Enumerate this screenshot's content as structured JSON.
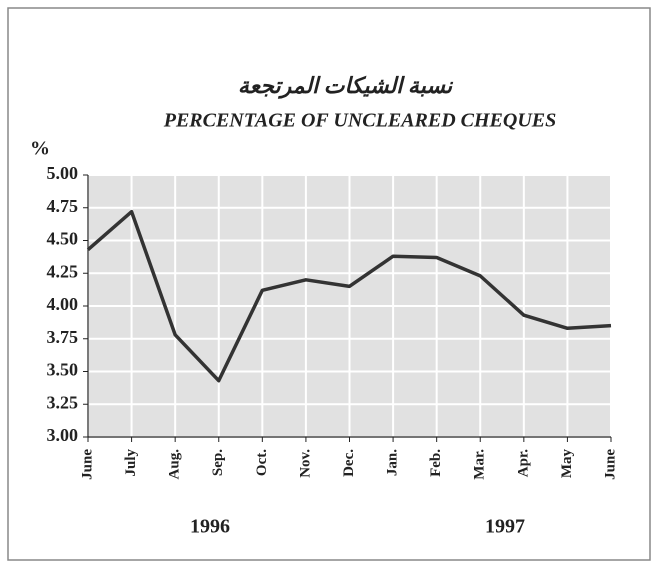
{
  "chart_data": {
    "type": "line",
    "title": "نسبة الشيكات المرتجعة",
    "subtitle": "PERCENTAGE OF UNCLEARED CHEQUES",
    "y_label": "%",
    "categories": [
      "June",
      "July",
      "Aug.",
      "Sep.",
      "Oct.",
      "Nov.",
      "Dec.",
      "Jan.",
      "Feb.",
      "Mar.",
      "Apr.",
      "May",
      "June"
    ],
    "values": [
      4.43,
      4.72,
      3.78,
      3.43,
      4.12,
      4.2,
      4.15,
      4.38,
      4.37,
      4.23,
      3.93,
      3.83,
      3.85
    ],
    "color": "#333333",
    "ylim": [
      3,
      5
    ],
    "yticks": [
      {
        "value": 3,
        "label": "3.00"
      },
      {
        "value": 3.25,
        "label": "3.25"
      },
      {
        "value": 3.5,
        "label": "3.50"
      },
      {
        "value": 3.75,
        "label": "3.75"
      },
      {
        "value": 4,
        "label": "4.00"
      },
      {
        "value": 4.25,
        "label": "4.25"
      },
      {
        "value": 4.5,
        "label": "4.50"
      },
      {
        "value": 4.75,
        "label": "4.75"
      },
      {
        "value": 5,
        "label": "5.00"
      }
    ],
    "grid": true,
    "annotations": [
      "1996",
      "1997"
    ]
  }
}
